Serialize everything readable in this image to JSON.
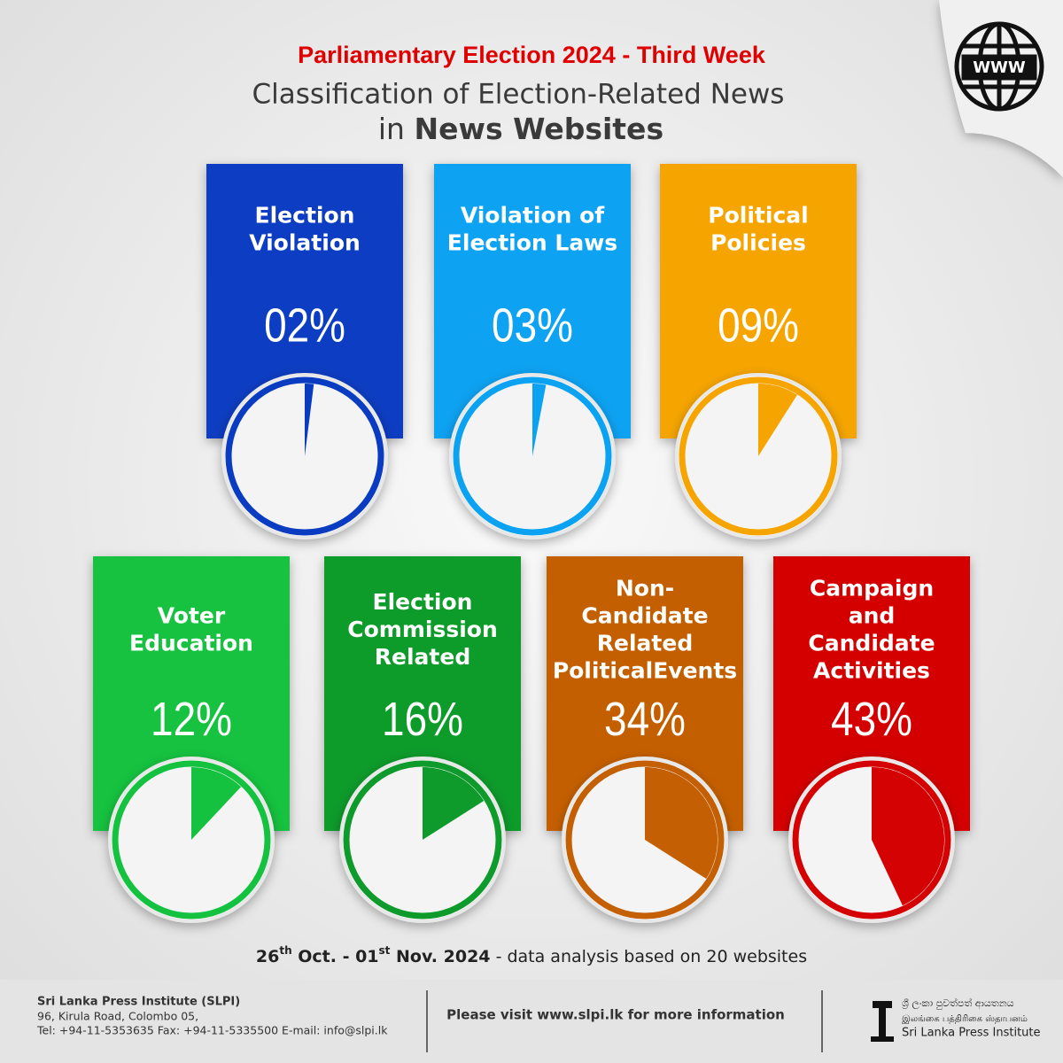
{
  "header": {
    "subtitle": "Parliamentary Election 2024 - Third Week",
    "title_line1": "Classification of Election-Related News",
    "title_line2_prefix": "in",
    "title_line2_bold": "News Websites"
  },
  "chart_data": {
    "type": "pie",
    "categories": [
      [
        "Election",
        "Violation"
      ],
      [
        "Violation of",
        "Election Laws"
      ],
      [
        "Political",
        "Policies"
      ],
      [
        "Voter",
        "Education"
      ],
      [
        "Election",
        "Commission",
        "Related"
      ],
      [
        "Non-",
        "Candidate",
        "Related",
        "PoliticalEvents"
      ],
      [
        "Campaign",
        "and",
        "Candidate",
        "Activities"
      ]
    ],
    "values": [
      2,
      3,
      9,
      12,
      16,
      34,
      43
    ],
    "value_labels": [
      "02%",
      "03%",
      "09%",
      "12%",
      "16%",
      "34%",
      "43%"
    ],
    "colors": [
      "#0a3cc2",
      "#0ba2f2",
      "#f6a500",
      "#14c23f",
      "#0f9b2b",
      "#c45f03",
      "#d40202"
    ]
  },
  "date_note": [
    "26",
    "th",
    " Oct. - 01",
    "st",
    " Nov. 2024",
    " - data analysis based on 20 websites"
  ],
  "footer": {
    "org": "Sri Lanka Press Institute (SLPI)",
    "address": "96, Kirula Road, Colombo 05,",
    "contact": "Tel: +94-11-5353635  Fax: +94-11-5335500  E-mail:  info@slpi.lk",
    "visit": "Please visit www.slpi.lk for more information",
    "logo_sinhala": "ශ්‍රී ලංකා පුවත්පත් ආයතනය",
    "logo_tamil": "இலங்கை பத்திரிகை ஸ்தாபனம்",
    "logo_english": "Sri Lanka Press Institute"
  },
  "icon": {
    "label": "WWW"
  }
}
